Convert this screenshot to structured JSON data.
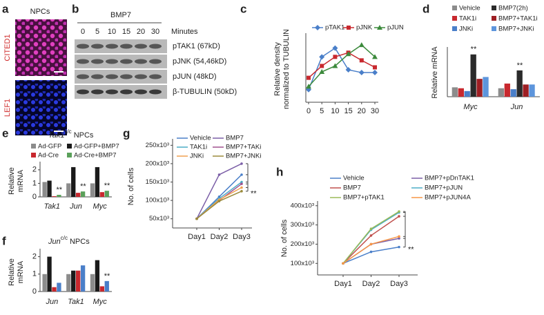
{
  "figure": {
    "a": {
      "panel": "a",
      "title": "NPCs",
      "stains": [
        "CITED1",
        "LEF1"
      ]
    },
    "b": {
      "panel": "b",
      "treatment": "BMP7",
      "times": [
        "0",
        "5",
        "10",
        "15",
        "20",
        "30"
      ],
      "time_unit": "Minutes",
      "bands": [
        "pTAK1 (67kD)",
        "pJNK (54,46kD)",
        "pJUN (48kD)",
        "β-TUBULIN (50kD)"
      ]
    }
  },
  "chart_data": [
    {
      "panel": "c",
      "type": "line",
      "ylabel": [
        "Relative density",
        "normalized to TUBULIN"
      ],
      "categories": [
        "0",
        "5",
        "10",
        "15",
        "20",
        "30"
      ],
      "ylim": [
        0,
        1.9
      ],
      "series": [
        {
          "name": "pTAK1",
          "color": "#4a7fc9",
          "marker": "diamond",
          "values": [
            0.36,
            1.3,
            1.55,
            0.93,
            0.85,
            0.85
          ]
        },
        {
          "name": "pJNK",
          "color": "#c8282e",
          "marker": "square",
          "values": [
            0.7,
            1.04,
            1.3,
            1.42,
            1.2,
            1.0
          ]
        },
        {
          "name": "pJUN",
          "color": "#3c8a3c",
          "marker": "triangle",
          "values": [
            0.45,
            0.87,
            1.04,
            1.38,
            1.64,
            1.3
          ]
        }
      ]
    },
    {
      "panel": "d",
      "type": "bar",
      "ylabel": "Relative mRNA",
      "categories": [
        "Myc",
        "Jun"
      ],
      "ylim": [
        0,
        5
      ],
      "series": [
        {
          "name": "Vehicle",
          "color": "#8c8c8c",
          "values": [
            1.0,
            0.9
          ]
        },
        {
          "name": "TAK1i",
          "color": "#c8282e",
          "values": [
            0.9,
            1.4
          ]
        },
        {
          "name": "JNKi",
          "color": "#4a7fc9",
          "values": [
            0.6,
            0.8
          ]
        },
        {
          "name": "BMP7(2h)",
          "color": "#2b2b2b",
          "values": [
            4.5,
            2.8
          ]
        },
        {
          "name": "BMP7+TAK1i",
          "color": "#9e1f24",
          "values": [
            1.9,
            1.3
          ]
        },
        {
          "name": "BMP7+JNKi",
          "color": "#5d95dc",
          "values": [
            2.1,
            1.3
          ]
        }
      ],
      "annotations": [
        "**",
        "**"
      ]
    },
    {
      "panel": "e",
      "type": "bar",
      "title": {
        "gene": "Tak1",
        "sup": "c/c",
        "text": "NPCs"
      },
      "ylabel": [
        "Relative",
        "mRNA"
      ],
      "categories": [
        "Tak1",
        "Jun",
        "Myc"
      ],
      "ylim": [
        0,
        2.4
      ],
      "yticks": [
        0,
        1,
        2
      ],
      "series": [
        {
          "name": "Ad-GFP",
          "color": "#8c8c8c",
          "values": [
            1.1,
            1.0,
            1.0
          ]
        },
        {
          "name": "Ad-GFP+BMP7",
          "color": "#1a1a1a",
          "values": [
            1.2,
            2.2,
            2.2
          ]
        },
        {
          "name": "Ad-Cre",
          "color": "#c8282e",
          "values": [
            0.05,
            0.3,
            0.35
          ]
        },
        {
          "name": "Ad-Cre+BMP7",
          "color": "#5aa05a",
          "values": [
            0.15,
            0.4,
            0.45
          ]
        }
      ],
      "annotations": [
        "**",
        "**",
        "**"
      ]
    },
    {
      "panel": "f",
      "type": "bar",
      "title": {
        "gene": "Jun",
        "sup": "c/c",
        "text": "NPCs"
      },
      "ylabel": [
        "Relative",
        "mRNA"
      ],
      "categories": [
        "Jun",
        "Tak1",
        "Myc"
      ],
      "ylim": [
        0,
        2.3
      ],
      "yticks": [
        0,
        1,
        2
      ],
      "series": [
        {
          "color": "#8c8c8c",
          "values": [
            1.0,
            1.0,
            1.0
          ]
        },
        {
          "color": "#1a1a1a",
          "values": [
            2.0,
            1.2,
            1.8
          ]
        },
        {
          "color": "#c8282e",
          "values": [
            0.25,
            1.2,
            0.3
          ]
        },
        {
          "color": "#4a7fc9",
          "values": [
            0.5,
            1.5,
            0.6
          ]
        }
      ],
      "annotations": [
        "**"
      ]
    },
    {
      "panel": "g",
      "type": "line",
      "ylabel": "No. of cells",
      "categories": [
        "Day1",
        "Day2",
        "Day3"
      ],
      "ylim": [
        25000,
        260000
      ],
      "yticks": [
        {
          "value": 50000,
          "label": "50x10³"
        },
        {
          "value": 100000,
          "label": "100x10³"
        },
        {
          "value": 150000,
          "label": "150x10³"
        },
        {
          "value": 200000,
          "label": "200x10³"
        },
        {
          "value": 250000,
          "label": "250x10³"
        }
      ],
      "series": [
        {
          "name": "Vehicle",
          "color": "#4a7fc9",
          "values": [
            50000,
            110000,
            170000
          ]
        },
        {
          "name": "BMP7",
          "color": "#7b5ea7",
          "values": [
            50000,
            170000,
            200000
          ]
        },
        {
          "name": "TAK1i",
          "color": "#4bacc6",
          "values": [
            50000,
            105000,
            150000
          ]
        },
        {
          "name": "BMP7+TAKi",
          "color": "#a0508f",
          "values": [
            50000,
            100000,
            145000
          ]
        },
        {
          "name": "JNKi",
          "color": "#f0a050",
          "values": [
            50000,
            102000,
            135000
          ]
        },
        {
          "name": "BMP7+JNKi",
          "color": "#9a8a3a",
          "values": [
            50000,
            98000,
            125000
          ]
        }
      ],
      "annotations": [
        "**"
      ]
    },
    {
      "panel": "h",
      "type": "line",
      "ylabel": "No. of cells",
      "categories": [
        "Day1",
        "Day2",
        "Day3"
      ],
      "ylim": [
        40000,
        410000
      ],
      "yticks": [
        {
          "value": 100000,
          "label": "100x10³"
        },
        {
          "value": 200000,
          "label": "200x10³"
        },
        {
          "value": 300000,
          "label": "300x10³"
        },
        {
          "value": 400000,
          "label": "400x10³"
        }
      ],
      "series": [
        {
          "name": "Vehicle",
          "color": "#4a7fc9",
          "values": [
            100000,
            160000,
            185000
          ]
        },
        {
          "name": "BMP7+pDnTAK1",
          "color": "#7b5ea7",
          "values": [
            100000,
            200000,
            230000
          ]
        },
        {
          "name": "BMP7",
          "color": "#c0504d",
          "values": [
            100000,
            245000,
            345000
          ]
        },
        {
          "name": "BMP7+pJUN",
          "color": "#4bacc6",
          "values": [
            100000,
            275000,
            365000
          ]
        },
        {
          "name": "BMP7+pTAK1",
          "color": "#9bbb59",
          "values": [
            100000,
            280000,
            370000
          ]
        },
        {
          "name": "BMP7+pJUN4A",
          "color": "#f79646",
          "values": [
            100000,
            200000,
            240000
          ]
        }
      ],
      "annotations": [
        "**"
      ]
    }
  ]
}
